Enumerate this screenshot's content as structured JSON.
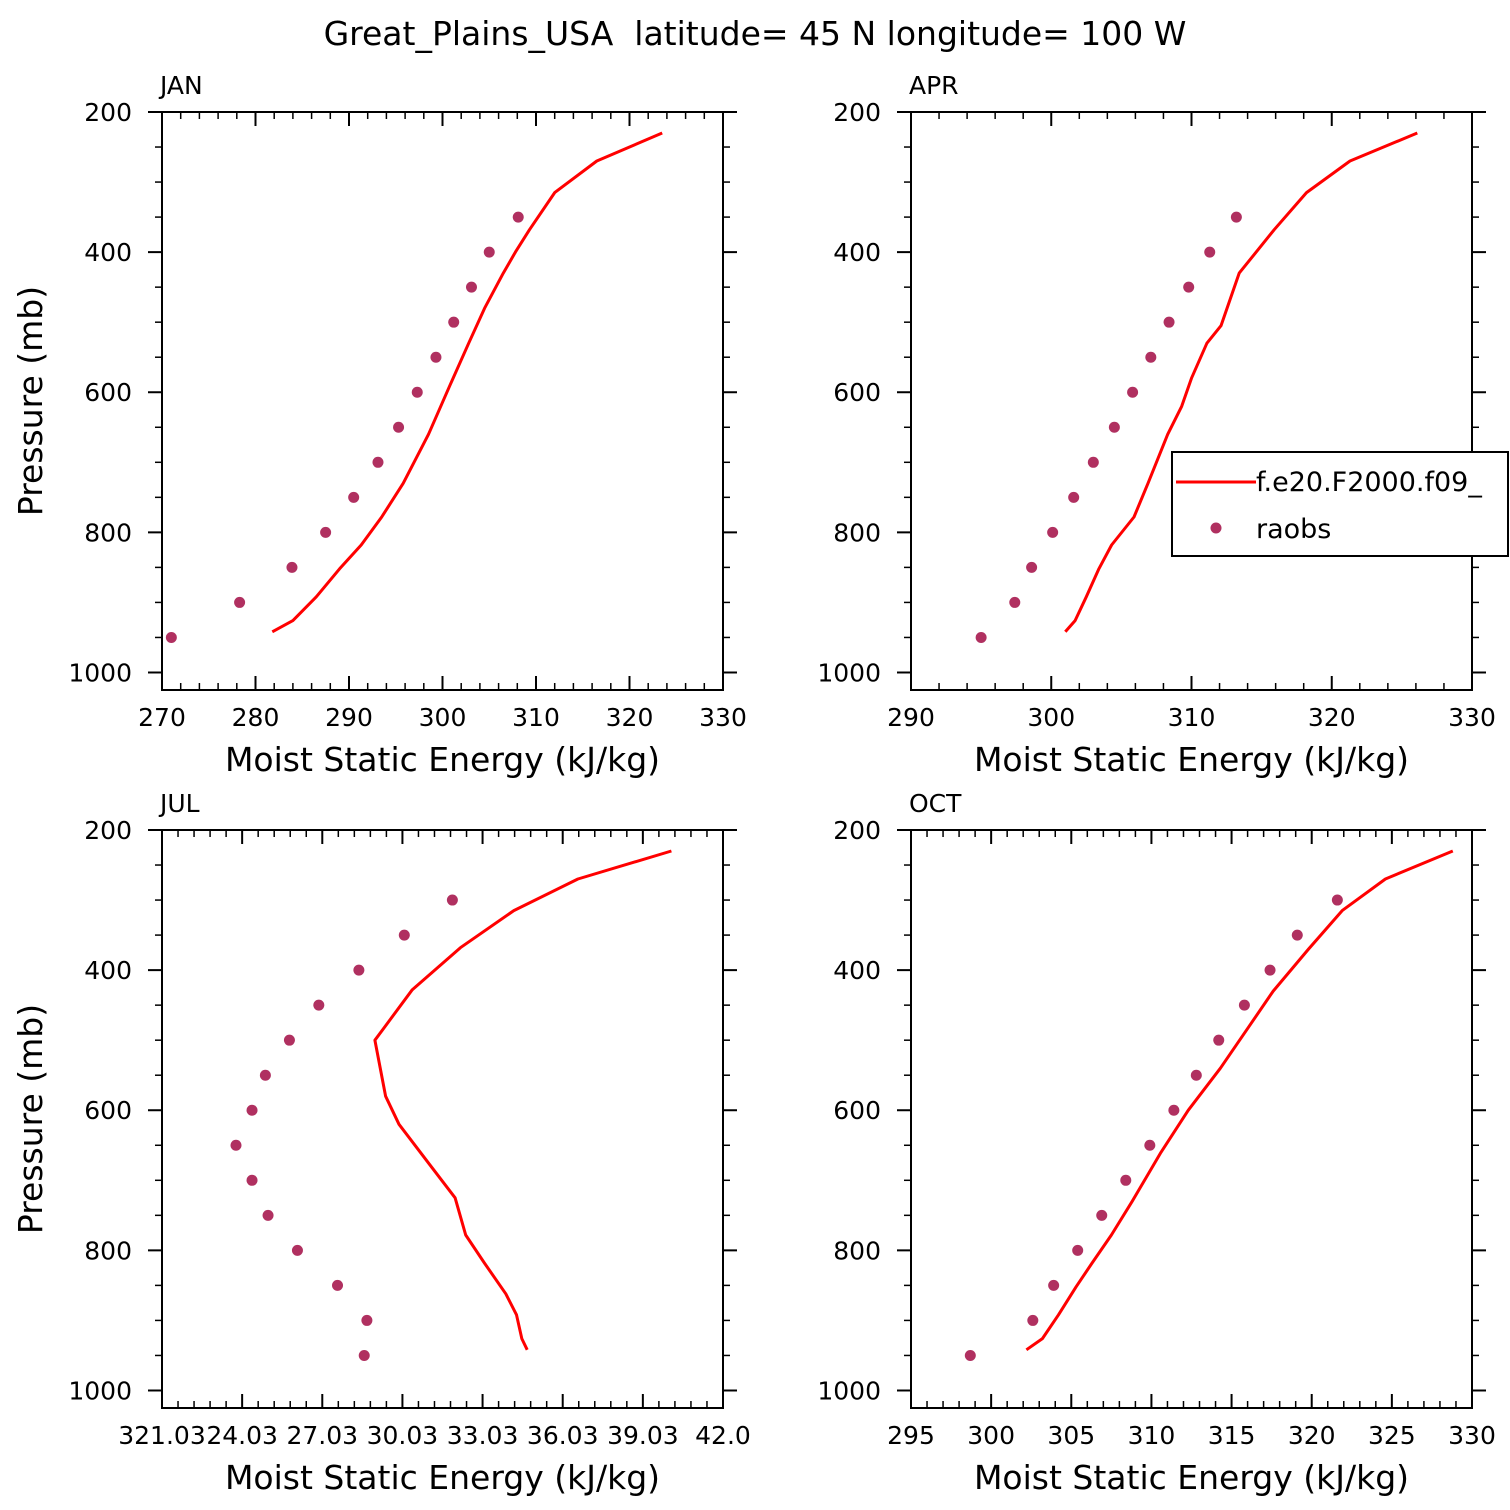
{
  "title": "Great_Plains_USA  latitude= 45 N longitude= 100 W",
  "colors": {
    "model_line": "#ff0000",
    "obs_marker": "#b03060",
    "axes": "#000000"
  },
  "legend": {
    "model_label": "f.e20.F2000.f09_",
    "obs_label": "raobs"
  },
  "chart_data": [
    {
      "type": "line",
      "panel_label": "JAN",
      "xlabel": "Moist Static Energy (kJ/kg)",
      "ylabel": "Pressure (mb)",
      "xlim": [
        270,
        330
      ],
      "ylim": [
        1025,
        200
      ],
      "xticks": [
        270,
        280,
        290,
        300,
        310,
        320,
        330
      ],
      "xtick_labels": [
        "270",
        "280",
        "290",
        "300",
        "310",
        "320",
        "330"
      ],
      "yticks": [
        200,
        400,
        600,
        800,
        1000
      ],
      "ytick_labels": [
        "200",
        "400",
        "600",
        "800",
        "1000"
      ],
      "series": [
        {
          "name": "f.e20.F2000.f09_",
          "type": "line",
          "points": [
            [
              281.8,
              942
            ],
            [
              284.0,
              926
            ],
            [
              286.5,
              892
            ],
            [
              289.0,
              852
            ],
            [
              291.3,
              818
            ],
            [
              293.5,
              778
            ],
            [
              295.8,
              730
            ],
            [
              298.5,
              660
            ],
            [
              300.8,
              590
            ],
            [
              302.8,
              530
            ],
            [
              304.5,
              480
            ],
            [
              306.5,
              430
            ],
            [
              307.8,
              400
            ],
            [
              309.3,
              368
            ],
            [
              312.0,
              315
            ],
            [
              316.5,
              270
            ],
            [
              323.5,
              230
            ]
          ]
        },
        {
          "name": "raobs",
          "type": "scatter",
          "points": [
            [
              271.0,
              950
            ],
            [
              278.3,
              900
            ],
            [
              283.9,
              850
            ],
            [
              287.5,
              800
            ],
            [
              290.5,
              750
            ],
            [
              293.1,
              700
            ],
            [
              295.3,
              650
            ],
            [
              297.3,
              600
            ],
            [
              299.3,
              550
            ],
            [
              301.2,
              500
            ],
            [
              303.1,
              450
            ],
            [
              305.0,
              400
            ],
            [
              308.1,
              350
            ]
          ]
        }
      ]
    },
    {
      "type": "line",
      "panel_label": "APR",
      "xlabel": "Moist Static Energy (kJ/kg)",
      "ylabel": "",
      "xlim": [
        290,
        330
      ],
      "ylim": [
        1025,
        200
      ],
      "xticks": [
        290,
        300,
        310,
        320,
        330
      ],
      "xtick_labels": [
        "290",
        "300",
        "310",
        "320",
        "330"
      ],
      "yticks": [
        200,
        400,
        600,
        800,
        1000
      ],
      "ytick_labels": [
        "200",
        "400",
        "600",
        "800",
        "1000"
      ],
      "has_legend": true,
      "series": [
        {
          "name": "f.e20.F2000.f09_",
          "type": "line",
          "points": [
            [
              301.0,
              942
            ],
            [
              301.7,
              926
            ],
            [
              302.5,
              892
            ],
            [
              303.4,
              852
            ],
            [
              304.3,
              818
            ],
            [
              305.9,
              778
            ],
            [
              306.9,
              730
            ],
            [
              308.3,
              660
            ],
            [
              309.3,
              620
            ],
            [
              310.0,
              580
            ],
            [
              311.1,
              530
            ],
            [
              312.1,
              505
            ],
            [
              313.4,
              430
            ],
            [
              315.9,
              368
            ],
            [
              318.2,
              315
            ],
            [
              321.3,
              270
            ],
            [
              326.1,
              230
            ]
          ]
        },
        {
          "name": "raobs",
          "type": "scatter",
          "points": [
            [
              295.0,
              950
            ],
            [
              297.4,
              900
            ],
            [
              298.6,
              850
            ],
            [
              300.1,
              800
            ],
            [
              301.6,
              750
            ],
            [
              303.0,
              700
            ],
            [
              304.5,
              650
            ],
            [
              305.8,
              600
            ],
            [
              307.1,
              550
            ],
            [
              308.4,
              500
            ],
            [
              309.8,
              450
            ],
            [
              311.3,
              400
            ],
            [
              313.2,
              350
            ]
          ]
        }
      ]
    },
    {
      "type": "line",
      "panel_label": "JUL",
      "xlabel": "Moist Static Energy (kJ/kg)",
      "ylabel": "Pressure (mb)",
      "xlim": [
        321.03,
        342.03
      ],
      "ylim": [
        1025,
        200
      ],
      "xticks": [
        321.03,
        324.03,
        327.03,
        330.03,
        333.03,
        336.03,
        339.03,
        342.03
      ],
      "xtick_labels": [
        "321.03",
        "24.03",
        "27.03",
        "30.03",
        "33.03",
        "36.03",
        "39.03",
        "42.0"
      ],
      "yticks": [
        200,
        400,
        600,
        800,
        1000
      ],
      "ytick_labels": [
        "200",
        "400",
        "600",
        "800",
        "1000"
      ],
      "series": [
        {
          "name": "f.e20.F2000.f09_",
          "type": "line",
          "points": [
            [
              334.7,
              942
            ],
            [
              334.5,
              926
            ],
            [
              334.3,
              892
            ],
            [
              333.9,
              862
            ],
            [
              333.1,
              818
            ],
            [
              332.4,
              778
            ],
            [
              332.0,
              725
            ],
            [
              331.1,
              680
            ],
            [
              330.5,
              650
            ],
            [
              329.9,
              620
            ],
            [
              329.4,
              580
            ],
            [
              329.0,
              500
            ],
            [
              330.4,
              428
            ],
            [
              332.2,
              368
            ],
            [
              334.2,
              315
            ],
            [
              336.6,
              270
            ],
            [
              340.1,
              230
            ]
          ]
        },
        {
          "name": "raobs",
          "type": "scatter",
          "points": [
            [
              328.6,
              950
            ],
            [
              328.7,
              900
            ],
            [
              327.6,
              850
            ],
            [
              326.1,
              800
            ],
            [
              325.0,
              750
            ],
            [
              324.4,
              700
            ],
            [
              323.8,
              650
            ],
            [
              324.4,
              600
            ],
            [
              324.9,
              550
            ],
            [
              325.8,
              500
            ],
            [
              326.9,
              450
            ],
            [
              328.4,
              400
            ],
            [
              330.1,
              350
            ],
            [
              331.9,
              300
            ]
          ]
        }
      ]
    },
    {
      "type": "line",
      "panel_label": "OCT",
      "xlabel": "Moist Static Energy (kJ/kg)",
      "ylabel": "",
      "xlim": [
        295,
        330
      ],
      "ylim": [
        1025,
        200
      ],
      "xticks": [
        295,
        300,
        305,
        310,
        315,
        320,
        325,
        330
      ],
      "xtick_labels": [
        "295",
        "300",
        "305",
        "310",
        "315",
        "320",
        "325",
        "330"
      ],
      "yticks": [
        200,
        400,
        600,
        800,
        1000
      ],
      "ytick_labels": [
        "200",
        "400",
        "600",
        "800",
        "1000"
      ],
      "series": [
        {
          "name": "f.e20.F2000.f09_",
          "type": "line",
          "points": [
            [
              302.2,
              942
            ],
            [
              303.2,
              926
            ],
            [
              304.2,
              892
            ],
            [
              305.3,
              852
            ],
            [
              306.3,
              818
            ],
            [
              307.5,
              778
            ],
            [
              308.8,
              730
            ],
            [
              310.6,
              660
            ],
            [
              312.3,
              600
            ],
            [
              314.3,
              540
            ],
            [
              316.1,
              480
            ],
            [
              317.6,
              430
            ],
            [
              319.8,
              370
            ],
            [
              321.9,
              315
            ],
            [
              324.6,
              270
            ],
            [
              328.8,
              230
            ]
          ]
        },
        {
          "name": "raobs",
          "type": "scatter",
          "points": [
            [
              298.7,
              950
            ],
            [
              302.6,
              900
            ],
            [
              303.9,
              850
            ],
            [
              305.4,
              800
            ],
            [
              306.9,
              750
            ],
            [
              308.4,
              700
            ],
            [
              309.9,
              650
            ],
            [
              311.4,
              600
            ],
            [
              312.8,
              550
            ],
            [
              314.2,
              500
            ],
            [
              315.8,
              450
            ],
            [
              317.4,
              400
            ],
            [
              319.1,
              350
            ],
            [
              321.6,
              300
            ]
          ]
        }
      ]
    }
  ]
}
